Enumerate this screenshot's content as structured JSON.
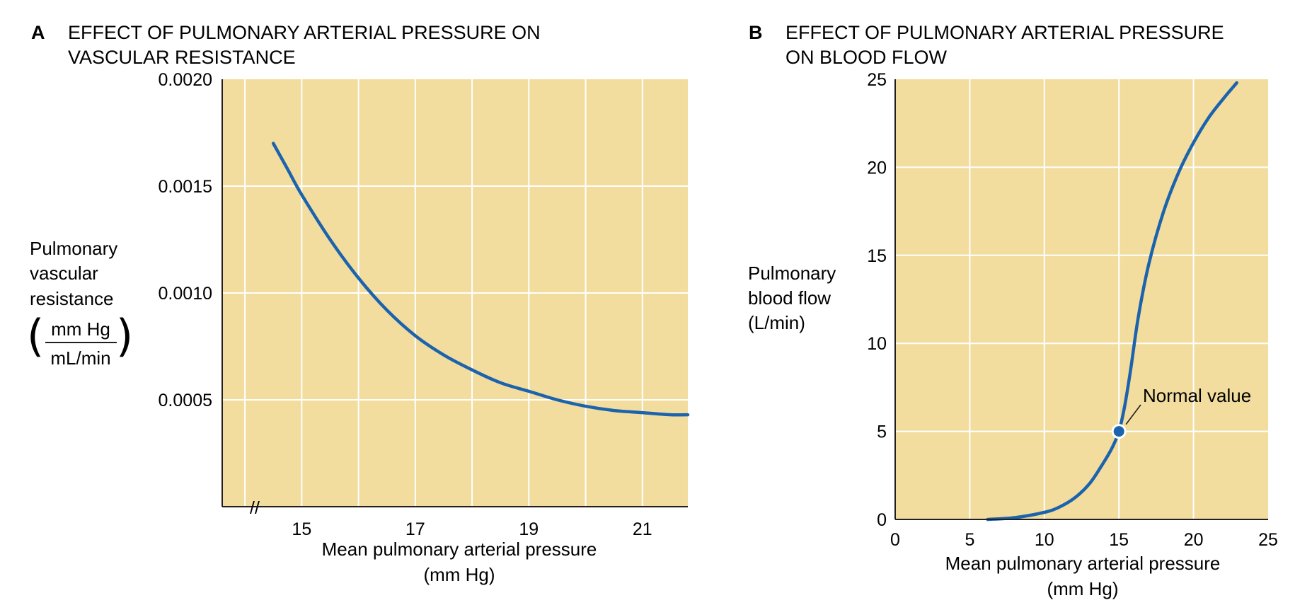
{
  "colors": {
    "plot_bg": "#f2dd9f",
    "grid": "#ffffff",
    "curve": "#1c63ad",
    "axis": "#231f20"
  },
  "chart_data": [
    {
      "type": "line",
      "panel_label": "A",
      "title_line1": "EFFECT OF PULMONARY ARTERIAL PRESSURE ON",
      "title_line2": "VASCULAR RESISTANCE",
      "xlabel_line1": "Mean pulmonary arterial pressure",
      "xlabel_line2": "(mm Hg)",
      "ylabel_lines": [
        "Pulmonary",
        "vascular",
        "resistance"
      ],
      "ylabel_unit_num": "mm Hg",
      "ylabel_unit_den": "mL/min",
      "axis_break": "//",
      "xlim": [
        13.6,
        21.8
      ],
      "ylim": [
        0,
        0.002
      ],
      "xticks": [
        15,
        17,
        19,
        21
      ],
      "xtick_labels": [
        "15",
        "17",
        "19",
        "21"
      ],
      "x_gridlines": [
        14,
        15,
        16,
        17,
        18,
        19,
        20,
        21
      ],
      "yticks": [
        0.0005,
        0.001,
        0.0015,
        0.002
      ],
      "ytick_labels": [
        "0.0005",
        "0.0010",
        "0.0015",
        "0.0020"
      ],
      "series": [
        {
          "name": "Pulmonary vascular resistance",
          "x": [
            14.5,
            14.75,
            15,
            15.5,
            16,
            16.5,
            17,
            17.5,
            18,
            18.5,
            19,
            19.5,
            20,
            20.5,
            21,
            21.5,
            21.8
          ],
          "y": [
            0.0017,
            0.00158,
            0.00146,
            0.00125,
            0.00107,
            0.00092,
            0.0008,
            0.00071,
            0.00064,
            0.00058,
            0.00054,
            0.0005,
            0.00047,
            0.00045,
            0.00044,
            0.00043,
            0.00043
          ]
        }
      ]
    },
    {
      "type": "line",
      "panel_label": "B",
      "title_line1": "EFFECT OF PULMONARY ARTERIAL PRESSURE",
      "title_line2": "ON BLOOD FLOW",
      "xlabel_line1": "Mean pulmonary arterial pressure",
      "xlabel_line2": "(mm Hg)",
      "ylabel_lines": [
        "Pulmonary",
        "blood flow",
        "(L/min)"
      ],
      "xlim": [
        0,
        25
      ],
      "ylim": [
        0,
        25
      ],
      "xticks": [
        0,
        5,
        10,
        15,
        20,
        25
      ],
      "xtick_labels": [
        "0",
        "5",
        "10",
        "15",
        "20",
        "25"
      ],
      "x_gridlines": [
        5,
        10,
        15,
        20
      ],
      "yticks": [
        0,
        5,
        10,
        15,
        20,
        25
      ],
      "ytick_labels": [
        "0",
        "5",
        "10",
        "15",
        "20",
        "25"
      ],
      "y_gridlines": [
        5,
        10,
        15,
        20
      ],
      "series": [
        {
          "name": "Pulmonary blood flow",
          "x": [
            6.2,
            8,
            10,
            11,
            12,
            13,
            13.8,
            14.5,
            15,
            15.4,
            15.8,
            16.3,
            17,
            18,
            19,
            20,
            21,
            22,
            22.9
          ],
          "y": [
            0,
            0.1,
            0.4,
            0.7,
            1.2,
            2.0,
            3.0,
            4.0,
            5.0,
            6.5,
            8.6,
            11.5,
            14.5,
            17.5,
            19.7,
            21.4,
            22.8,
            23.9,
            24.8
          ]
        }
      ],
      "marker": {
        "x": 15,
        "y": 5
      },
      "annotation": "Normal value"
    }
  ]
}
